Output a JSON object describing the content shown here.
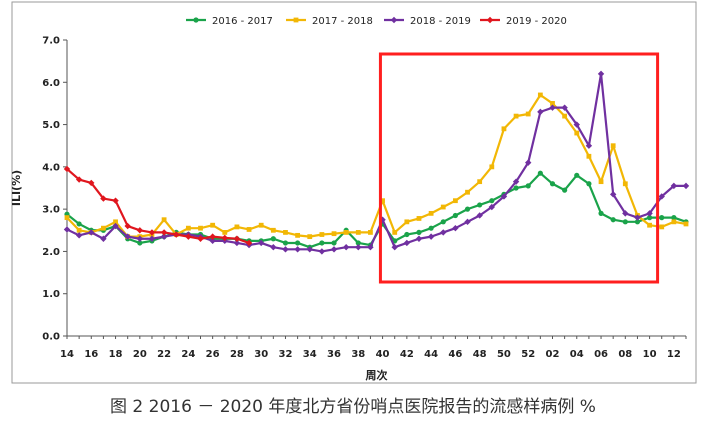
{
  "chart_data": {
    "type": "line",
    "title": "",
    "xlabel": "周次",
    "ylabel": "ILI(%)",
    "ylim": [
      0,
      7
    ],
    "yticks": [
      "0.0",
      "1.0",
      "2.0",
      "3.0",
      "4.0",
      "5.0",
      "6.0",
      "7.0"
    ],
    "xticks": [
      "14",
      "16",
      "18",
      "20",
      "22",
      "24",
      "26",
      "28",
      "30",
      "32",
      "34",
      "36",
      "38",
      "40",
      "42",
      "44",
      "46",
      "48",
      "50",
      "52",
      "02",
      "04",
      "06",
      "08",
      "10",
      "12"
    ],
    "grid": false,
    "legend_placement": "top",
    "categories": [
      "14",
      "15",
      "16",
      "17",
      "18",
      "19",
      "20",
      "21",
      "22",
      "23",
      "24",
      "25",
      "26",
      "27",
      "28",
      "29",
      "30",
      "31",
      "32",
      "33",
      "34",
      "35",
      "36",
      "37",
      "38",
      "39",
      "40",
      "41",
      "42",
      "43",
      "44",
      "45",
      "46",
      "47",
      "48",
      "49",
      "50",
      "51",
      "52",
      "01",
      "02",
      "03",
      "04",
      "05",
      "06",
      "07",
      "08",
      "09",
      "10",
      "11",
      "12",
      "13"
    ],
    "series": [
      {
        "name": "2016 - 2017",
        "color": "#1aa34a",
        "marker": "circle",
        "values": [
          2.88,
          2.65,
          2.5,
          2.5,
          2.6,
          2.3,
          2.2,
          2.25,
          2.35,
          2.45,
          2.4,
          2.4,
          2.3,
          2.3,
          2.3,
          2.25,
          2.25,
          2.3,
          2.2,
          2.2,
          2.1,
          2.2,
          2.2,
          2.5,
          2.2,
          2.15,
          2.65,
          2.25,
          2.4,
          2.45,
          2.55,
          2.7,
          2.85,
          3.0,
          3.1,
          3.2,
          3.35,
          3.5,
          3.55,
          3.85,
          3.6,
          3.45,
          3.8,
          3.6,
          2.9,
          2.75,
          2.7,
          2.7,
          2.8,
          2.8,
          2.8,
          2.7
        ]
      },
      {
        "name": "2017 - 2018",
        "color": "#f2b705",
        "marker": "square",
        "values": [
          2.8,
          2.5,
          2.45,
          2.55,
          2.7,
          2.35,
          2.35,
          2.4,
          2.75,
          2.4,
          2.55,
          2.55,
          2.62,
          2.45,
          2.58,
          2.52,
          2.62,
          2.5,
          2.45,
          2.38,
          2.35,
          2.4,
          2.42,
          2.45,
          2.45,
          2.45,
          3.2,
          2.45,
          2.7,
          2.78,
          2.9,
          3.05,
          3.2,
          3.4,
          3.65,
          4.0,
          4.9,
          5.2,
          5.25,
          5.7,
          5.5,
          5.2,
          4.8,
          4.25,
          3.65,
          4.5,
          3.6,
          2.85,
          2.62,
          2.58,
          2.7,
          2.65
        ]
      },
      {
        "name": "2018 - 2019",
        "color": "#7030a0",
        "marker": "diamond",
        "values": [
          2.52,
          2.38,
          2.45,
          2.3,
          2.6,
          2.35,
          2.3,
          2.3,
          2.35,
          2.4,
          2.4,
          2.35,
          2.25,
          2.25,
          2.2,
          2.15,
          2.2,
          2.1,
          2.05,
          2.05,
          2.05,
          2.0,
          2.05,
          2.1,
          2.1,
          2.1,
          2.75,
          2.1,
          2.2,
          2.3,
          2.35,
          2.45,
          2.55,
          2.7,
          2.85,
          3.05,
          3.3,
          3.65,
          4.1,
          5.3,
          5.4,
          5.4,
          5.0,
          4.5,
          6.2,
          3.35,
          2.9,
          2.8,
          2.9,
          3.3,
          3.55,
          3.55
        ]
      },
      {
        "name": "2019 - 2020",
        "color": "#e0161e",
        "marker": "diamond",
        "values": [
          3.95,
          3.7,
          3.62,
          3.25,
          3.2,
          2.6,
          2.5,
          2.45,
          2.45,
          2.4,
          2.35,
          2.3,
          2.35,
          2.32,
          2.3,
          2.2,
          null,
          null,
          null,
          null,
          null,
          null,
          null,
          null,
          null,
          null,
          null,
          null,
          null,
          null,
          null,
          null,
          null,
          null,
          null,
          null,
          null,
          null,
          null,
          null,
          null,
          null,
          null,
          null,
          null,
          null,
          null,
          null,
          null,
          null,
          null,
          null
        ]
      }
    ],
    "highlight": {
      "from_index": 25,
      "to_index": 48,
      "color": "#ff1f1f"
    }
  },
  "caption": "图 2 2016 － 2020 年度北方省份哨点医院报告的流感样病例 %"
}
